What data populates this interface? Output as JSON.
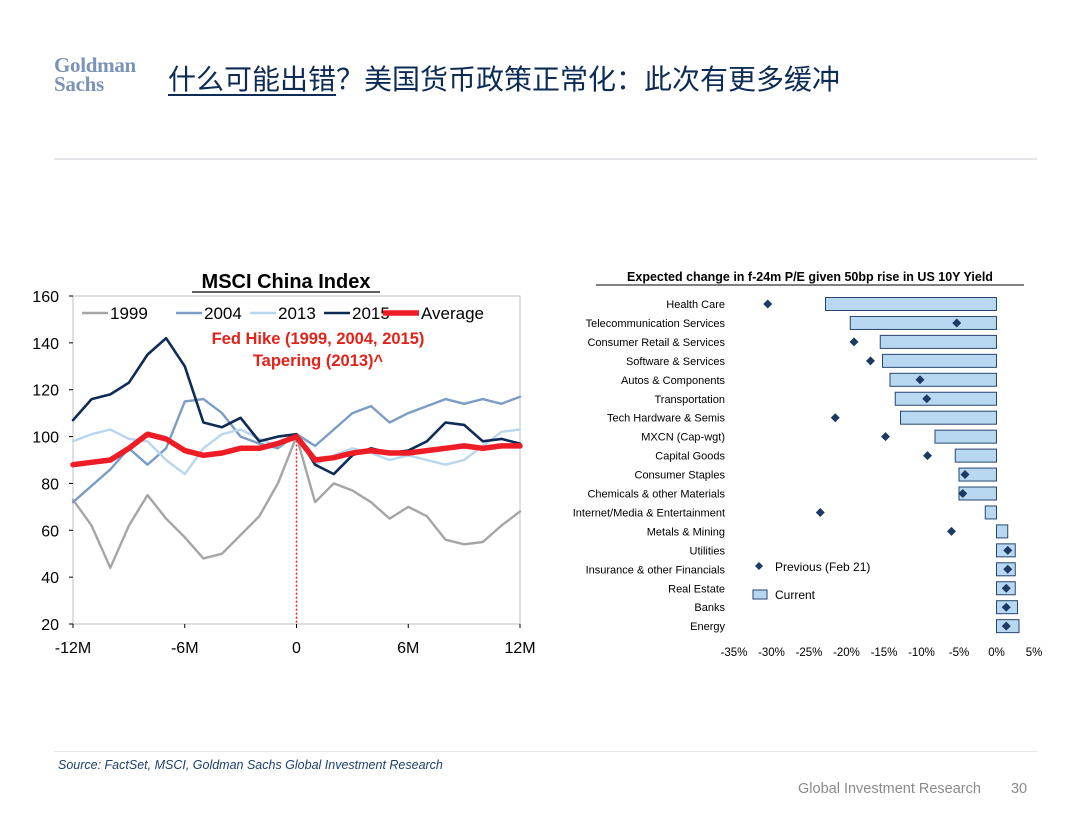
{
  "header": {
    "logo_line1": "Goldman",
    "logo_line2": "Sachs",
    "title_underlined": "什么可能出错",
    "title_rest": "？美国货币政策正常化：此次有更多缓冲"
  },
  "footer": {
    "source": "Source: FactSet, MSCI, Goldman Sachs Global Investment Research",
    "label": "Global Investment Research",
    "page": "30"
  },
  "colors": {
    "title": "#0d2c55",
    "s1999": "#a5a5a5",
    "s2004": "#7b9cc4",
    "s2013": "#b9d6ef",
    "s2015": "#0e2b57",
    "average": "#ee1c25",
    "annotation": "#e2231a",
    "bar_fill": "#b8d8f2",
    "bar_stroke": "#26466f",
    "marker": "#1c3b64"
  },
  "chart_data": [
    {
      "type": "line",
      "title": "MSCI China Index",
      "annotation_line1": "Fed Hike (1999, 2004, 2015)",
      "annotation_line2": "Tapering (2013)^",
      "xlabel": "",
      "ylabel": "",
      "x_tick_labels": [
        "-12M",
        "-6M",
        "0",
        "6M",
        "12M"
      ],
      "x_ticks": [
        -12,
        -6,
        0,
        6,
        12
      ],
      "xlim": [
        -12,
        12
      ],
      "ylim": [
        20,
        160
      ],
      "y_ticks": [
        20,
        40,
        60,
        80,
        100,
        120,
        140,
        160
      ],
      "y_tick_labels": [
        "20",
        "40",
        "60",
        "80",
        "100",
        "120",
        "140",
        "160"
      ],
      "vline_at": 0,
      "x": [
        -12,
        -11,
        -10,
        -9,
        -8,
        -7,
        -6,
        -5,
        -4,
        -3,
        -2,
        -1,
        0,
        1,
        2,
        3,
        4,
        5,
        6,
        7,
        8,
        9,
        10,
        11,
        12
      ],
      "series": [
        {
          "name": "1999",
          "values": [
            73,
            62,
            44,
            62,
            75,
            65,
            57,
            48,
            50,
            58,
            66,
            80,
            100,
            72,
            80,
            77,
            72,
            65,
            70,
            66,
            56,
            54,
            55,
            62,
            68
          ]
        },
        {
          "name": "2004",
          "values": [
            72,
            79,
            86,
            95,
            88,
            95,
            115,
            116,
            110,
            100,
            97,
            95,
            101,
            96,
            103,
            110,
            113,
            106,
            110,
            113,
            116,
            114,
            116,
            114,
            117
          ]
        },
        {
          "name": "2013",
          "values": [
            98,
            101,
            103,
            99,
            98,
            90,
            84,
            95,
            101,
            103,
            99,
            96,
            100,
            88,
            92,
            95,
            93,
            90,
            92,
            90,
            88,
            90,
            96,
            102,
            103
          ]
        },
        {
          "name": "2015",
          "values": [
            107,
            116,
            118,
            123,
            135,
            142,
            130,
            106,
            104,
            108,
            98,
            100,
            101,
            88,
            84,
            92,
            95,
            93,
            94,
            98,
            106,
            105,
            98,
            99,
            97
          ]
        },
        {
          "name": "Average",
          "values": [
            88,
            89,
            90,
            95,
            101,
            99,
            94,
            92,
            93,
            95,
            95,
            97,
            100,
            90,
            91,
            93,
            94,
            93,
            93,
            94,
            95,
            96,
            95,
            96,
            96
          ]
        }
      ]
    },
    {
      "type": "bar",
      "orientation": "horizontal",
      "title": "Expected change in f-24m P/E given 50bp rise in US 10Y Yield",
      "xlim": [
        -35,
        5
      ],
      "x_ticks": [
        -35,
        -30,
        -25,
        -20,
        -15,
        -10,
        -5,
        0,
        5
      ],
      "x_tick_labels": [
        "-35%",
        "-30%",
        "-25%",
        "-20%",
        "-15%",
        "-10%",
        "-5%",
        "0%",
        "5%"
      ],
      "categories": [
        "Health Care",
        "Telecommunication Services",
        "Consumer Retail & Services",
        "Software & Services",
        "Autos & Components",
        "Transportation",
        "Tech Hardware & Semis",
        "MXCN (Cap-wgt)",
        "Capital Goods",
        "Consumer Staples",
        "Chemicals & other Materials",
        "Internet/Media & Entertainment",
        "Metals & Mining",
        "Utilities",
        "Insurance & other Financials",
        "Real Estate",
        "Banks",
        "Energy"
      ],
      "series": [
        {
          "name": "Current",
          "values": [
            -22.8,
            -19.5,
            -15.5,
            -15.2,
            -14.2,
            -13.5,
            -12.8,
            -8.2,
            -5.5,
            -5.0,
            -5.0,
            -1.5,
            1.5,
            2.5,
            2.5,
            2.5,
            2.8,
            3.0
          ]
        },
        {
          "name": "Previous (Feb 21)",
          "values": [
            -30.5,
            -5.3,
            -19.0,
            -16.8,
            -10.2,
            -9.3,
            -21.5,
            -14.8,
            -9.2,
            -4.2,
            -4.5,
            -23.5,
            -6.0,
            1.5,
            1.5,
            1.3,
            1.3,
            1.3
          ]
        }
      ],
      "legend_previous": "Previous (Feb 21)",
      "legend_current": "Current"
    }
  ]
}
